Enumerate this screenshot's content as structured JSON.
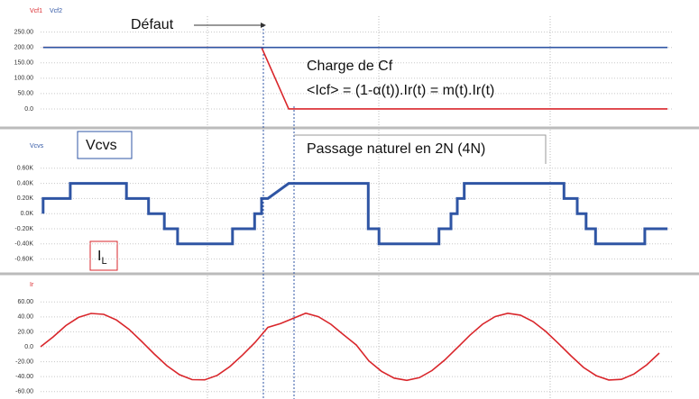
{
  "chart_data": [
    {
      "type": "line",
      "series": [
        {
          "name": "Vcf1",
          "color": "#d9262b",
          "x": [
            0.4,
            35,
            39.3,
            99.3
          ],
          "values": [
            200,
            200,
            0,
            0
          ]
        },
        {
          "name": "Vcf2",
          "color": "#2f55a4",
          "x": [
            0.4,
            99.3
          ],
          "values": [
            200,
            200
          ]
        }
      ],
      "xlim": [
        0,
        100
      ],
      "ylim": [
        -50,
        290
      ],
      "yticks": [
        {
          "value": 250,
          "label": "250.00"
        },
        {
          "value": 200,
          "label": "200.00"
        },
        {
          "value": 150,
          "label": "150.00"
        },
        {
          "value": 100,
          "label": "100.00"
        },
        {
          "value": 50,
          "label": "50.00"
        },
        {
          "value": 0,
          "label": "0.0"
        }
      ],
      "grid": true,
      "annotations": [
        "Défaut",
        "Charge de Cf",
        "<Icf> = (1-α(t)).Ir(t)  = m(t).Ir(t)"
      ]
    },
    {
      "type": "line",
      "series": [
        {
          "name": "Vcvs",
          "color": "#2f55a4",
          "x": [
            0.4,
            0.4,
            4.7,
            4.7,
            13.6,
            13.6,
            17.1,
            17.1,
            19.6,
            19.6,
            21.7,
            21.7,
            30.4,
            30.4,
            33.9,
            33.9,
            35,
            35,
            36,
            39.3,
            51.9,
            51.9,
            53.6,
            53.6,
            63.1,
            63.1,
            65,
            65,
            66,
            66,
            67.1,
            67.1,
            82.9,
            82.9,
            85,
            85,
            86.4,
            86.4,
            87.9,
            87.9,
            95.7,
            95.7,
            99.3
          ],
          "values": [
            0,
            200,
            200,
            400,
            400,
            200,
            200,
            0,
            0,
            -200,
            -200,
            -400,
            -400,
            -200,
            -200,
            0,
            0,
            200,
            200,
            400,
            400,
            -200,
            -200,
            -400,
            -400,
            -200,
            -200,
            0,
            0,
            200,
            200,
            400,
            400,
            200,
            200,
            0,
            0,
            -200,
            -200,
            -400,
            -400,
            -200,
            -200
          ]
        }
      ],
      "xlim": [
        0,
        100
      ],
      "ylim": [
        -700,
        800
      ],
      "yticks": [
        {
          "value": 600,
          "label": "0.60K"
        },
        {
          "value": 400,
          "label": "0.40K"
        },
        {
          "value": 200,
          "label": "0.20K"
        },
        {
          "value": 0,
          "label": "0.0K"
        },
        {
          "value": -200,
          "label": "-0.20K"
        },
        {
          "value": -400,
          "label": "-0.40K"
        },
        {
          "value": -600,
          "label": "-0.60K"
        }
      ],
      "grid": true,
      "annotations": [
        "Vcvs",
        "Passage naturel en 2N (4N)",
        {
          "text": "I",
          "sub": "L"
        }
      ]
    },
    {
      "type": "line",
      "series": [
        {
          "name": "Ir",
          "color": "#d9262b",
          "x": [
            0,
            2,
            4,
            6,
            8,
            10,
            12,
            14,
            16,
            18,
            20,
            22,
            24,
            26,
            28,
            30,
            32,
            34,
            36,
            38,
            40,
            42,
            44,
            46,
            48,
            50,
            52,
            54,
            56,
            58,
            60,
            62,
            64,
            66,
            68,
            70,
            72,
            74,
            76,
            78,
            80,
            82,
            84,
            86,
            88,
            90,
            92,
            94,
            96,
            98
          ],
          "values": [
            0,
            13.3,
            28.4,
            39.4,
            44.7,
            43.5,
            36.0,
            23.4,
            7.3,
            -9.7,
            -25.4,
            -37.4,
            -44.0,
            -44.3,
            -38.2,
            -26.4,
            -11.0,
            6.0,
            26,
            31,
            38,
            45,
            40.3,
            30.1,
            16.0,
            2.4,
            -19.0,
            -32.9,
            -42.0,
            -45.0,
            -41.4,
            -31.9,
            -17.9,
            -1.3,
            15.4,
            30.2,
            40.4,
            44.9,
            42.4,
            33.8,
            20.6,
            4.6,
            -12.1,
            -27.7,
            -38.8,
            -44.5,
            -43.7,
            -36.4,
            -24.3,
            -8.5
          ]
        }
      ],
      "xlim": [
        0,
        100
      ],
      "ylim": [
        -70,
        70
      ],
      "yticks": [
        {
          "value": 60,
          "label": "60.00"
        },
        {
          "value": 40,
          "label": "40.00"
        },
        {
          "value": 20,
          "label": "20.00"
        },
        {
          "value": 0,
          "label": "0.0"
        },
        {
          "value": -20,
          "label": "-20.00"
        },
        {
          "value": -40,
          "label": "-40.00"
        },
        {
          "value": -60,
          "label": "-60.00"
        }
      ],
      "grid": true
    }
  ]
}
